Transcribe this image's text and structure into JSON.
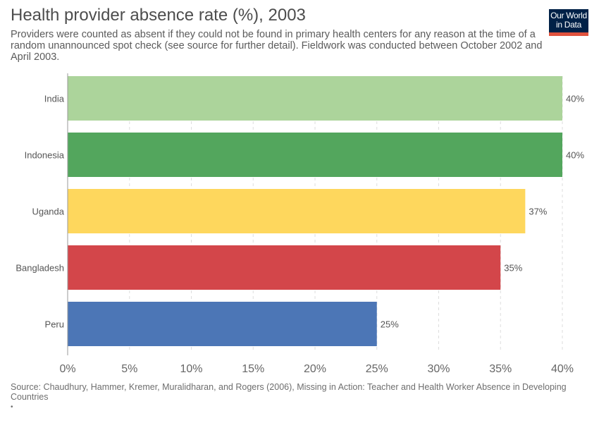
{
  "title": "Health provider absence rate (%), 2003",
  "subtitle": "Providers were counted as absent if they could not be found in primary health centers for any reason at the time of a random unannounced spot check (see source for further detail). Fieldwork was conducted between October 2002 and April 2003.",
  "logo": {
    "line1": "Our World",
    "line2": "in Data",
    "bg_color": "#002147",
    "accent_color": "#e0523d"
  },
  "source": "Source: Chaudhury, Hammer, Kremer, Muralidharan, and Rogers (2006), Missing in Action: Teacher and Health Worker Absence in Developing Countries",
  "footnote_marker": "•",
  "chart_data": {
    "type": "bar",
    "orientation": "horizontal",
    "categories": [
      "India",
      "Indonesia",
      "Uganda",
      "Bangladesh",
      "Peru"
    ],
    "values": [
      40,
      40,
      37,
      35,
      25
    ],
    "value_labels": [
      "40%",
      "40%",
      "37%",
      "35%",
      "25%"
    ],
    "colors": [
      "#acd49b",
      "#53a65d",
      "#fed75d",
      "#d3464a",
      "#4c76b6"
    ],
    "xlim": [
      0,
      40
    ],
    "xticks": [
      0,
      5,
      10,
      15,
      20,
      25,
      30,
      35,
      40
    ],
    "xtick_labels": [
      "0%",
      "5%",
      "10%",
      "15%",
      "20%",
      "25%",
      "30%",
      "35%",
      "40%"
    ],
    "grid": "vertical dashed"
  }
}
